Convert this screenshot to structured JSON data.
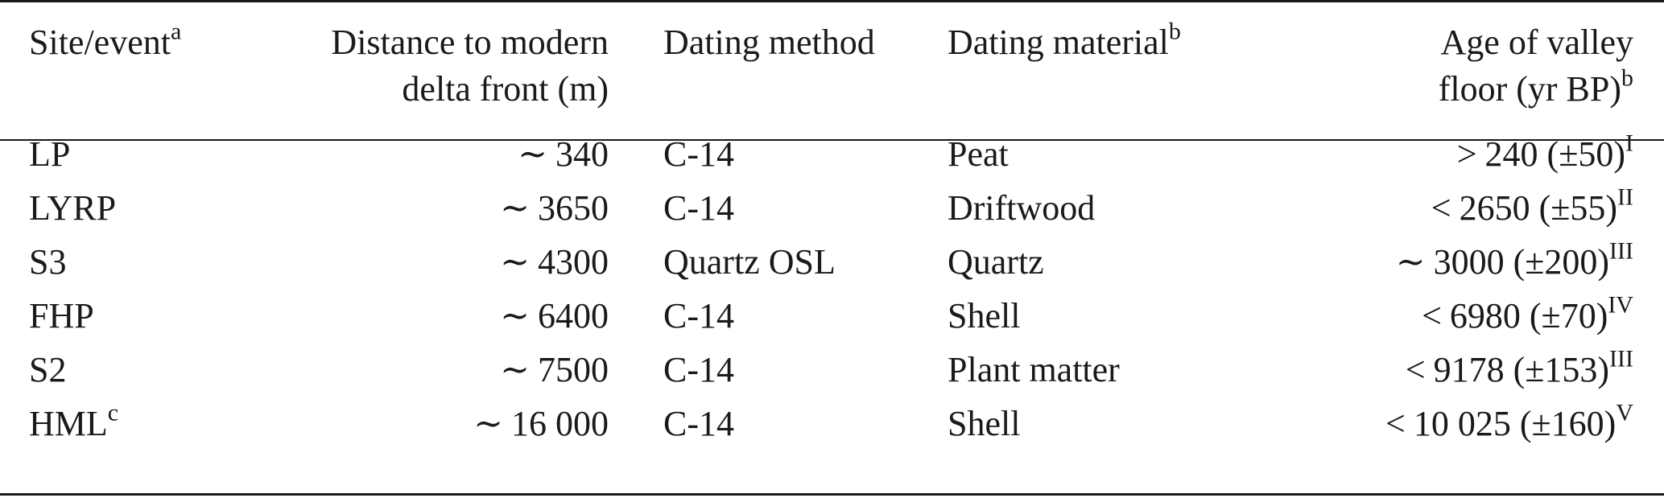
{
  "table": {
    "headers": [
      {
        "lines": [
          "Site/event"
        ],
        "sup": "a"
      },
      {
        "lines": [
          "Distance to modern",
          "delta front (m)"
        ],
        "sup": ""
      },
      {
        "lines": [
          "Dating method"
        ],
        "sup": ""
      },
      {
        "lines": [
          "Dating material"
        ],
        "sup": "b"
      },
      {
        "lines": [
          "Age of valley",
          "floor (yr BP)"
        ],
        "sup": "b"
      }
    ],
    "rows": [
      {
        "site": "LP",
        "site_sup": "",
        "distance_sym": "∼",
        "distance": "340",
        "method": "C-14",
        "material": "Peat",
        "age_sym": ">",
        "age": "240 (±50)",
        "age_sup": "I"
      },
      {
        "site": "LYRP",
        "site_sup": "",
        "distance_sym": "∼",
        "distance": "3650",
        "method": "C-14",
        "material": "Driftwood",
        "age_sym": "<",
        "age": "2650 (±55)",
        "age_sup": "II"
      },
      {
        "site": "S3",
        "site_sup": "",
        "distance_sym": "∼",
        "distance": "4300",
        "method": "Quartz OSL",
        "material": "Quartz",
        "age_sym": "∼",
        "age": "3000 (±200)",
        "age_sup": "III"
      },
      {
        "site": "FHP",
        "site_sup": "",
        "distance_sym": "∼",
        "distance": "6400",
        "method": "C-14",
        "material": "Shell",
        "age_sym": "<",
        "age": "6980 (±70)",
        "age_sup": "IV"
      },
      {
        "site": "S2",
        "site_sup": "",
        "distance_sym": "∼",
        "distance": "7500",
        "method": "C-14",
        "material": "Plant matter",
        "age_sym": "<",
        "age": "9178 (±153)",
        "age_sup": "III"
      },
      {
        "site": "HML",
        "site_sup": "c",
        "distance_sym": "∼",
        "distance": "16 000",
        "method": "C-14",
        "material": "Shell",
        "age_sym": "<",
        "age": "10 025 (±160)",
        "age_sup": "V"
      }
    ]
  }
}
